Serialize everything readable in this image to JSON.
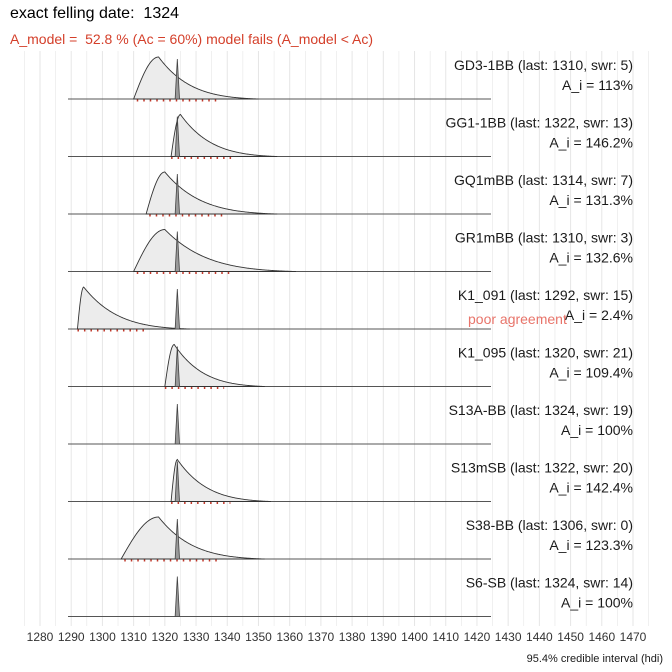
{
  "title": "exact felling date:  1324",
  "subtitle": "A_model =  52.8 % (Ac = 60%) model fails (A_model < Ac)",
  "caption": "95.4% credible interval (hdi)",
  "colors": {
    "subtitle": "#d43f2a",
    "density_fill": "#ececec",
    "density_line": "#333333",
    "felling_fill": "#9a9a9a",
    "hdi_dots": "#c0392b",
    "grid": "#e6e6e6",
    "warning": "#e8746a"
  },
  "chart_data": {
    "type": "area",
    "xlabel": "",
    "ylabel": "",
    "xlim": [
      1275,
      1475
    ],
    "x_ticks": [
      1280,
      1290,
      1300,
      1310,
      1320,
      1330,
      1340,
      1350,
      1360,
      1370,
      1380,
      1390,
      1400,
      1410,
      1420,
      1430,
      1440,
      1450,
      1460,
      1470
    ],
    "felling_date": 1324,
    "grid": true,
    "series": [
      {
        "name": "GD3-1BB",
        "last": 1310,
        "swr": 5,
        "label": "GD3-1BB (last: 1310, swr: 5)",
        "a_i": "A_i = 113%",
        "peak": 1318,
        "start": 1310,
        "end": 1350,
        "hdi": [
          1311,
          1337
        ],
        "warning": ""
      },
      {
        "name": "GG1-1BB",
        "last": 1322,
        "swr": 13,
        "label": "GG1-1BB (last: 1322, swr: 13)",
        "a_i": "A_i = 146.2%",
        "peak": 1325,
        "start": 1322,
        "end": 1356,
        "hdi": [
          1322,
          1342
        ],
        "warning": ""
      },
      {
        "name": "GQ1mBB",
        "last": 1314,
        "swr": 7,
        "label": "GQ1mBB (last: 1314, swr: 7)",
        "a_i": "A_i = 131.3%",
        "peak": 1320,
        "start": 1314,
        "end": 1356,
        "hdi": [
          1315,
          1340
        ],
        "warning": ""
      },
      {
        "name": "GR1mBB",
        "last": 1310,
        "swr": 3,
        "label": "GR1mBB (last: 1310, swr: 3)",
        "a_i": "A_i = 132.6%",
        "peak": 1320,
        "start": 1310,
        "end": 1362,
        "hdi": [
          1311,
          1342
        ],
        "warning": ""
      },
      {
        "name": "K1_091",
        "last": 1292,
        "swr": 15,
        "label": "K1_091 (last: 1292, swr: 15)",
        "a_i": "A_i = 2.4%",
        "peak": 1294,
        "start": 1292,
        "end": 1328,
        "hdi": [
          1292,
          1314
        ],
        "warning": "poor agreement"
      },
      {
        "name": "K1_095",
        "last": 1320,
        "swr": 21,
        "label": "K1_095 (last: 1320, swr: 21)",
        "a_i": "A_i = 109.4%",
        "peak": 1323,
        "start": 1320,
        "end": 1352,
        "hdi": [
          1320,
          1339
        ],
        "warning": ""
      },
      {
        "name": "S13A-BB",
        "last": 1324,
        "swr": 19,
        "label": "S13A-BB (last: 1324, swr: 19)",
        "a_i": "A_i = 100%",
        "peak": null,
        "start": null,
        "end": null,
        "hdi": null,
        "warning": ""
      },
      {
        "name": "S13mSB",
        "last": 1322,
        "swr": 20,
        "label": "S13mSB (last: 1322, swr: 20)",
        "a_i": "A_i = 142.4%",
        "peak": 1324,
        "start": 1322,
        "end": 1354,
        "hdi": [
          1322,
          1341
        ],
        "warning": ""
      },
      {
        "name": "S38-BB",
        "last": 1306,
        "swr": 0,
        "label": "S38-BB (last: 1306, swr: 0)",
        "a_i": "A_i = 123.3%",
        "peak": 1318,
        "start": 1306,
        "end": 1352,
        "hdi": [
          1307,
          1338
        ],
        "warning": ""
      },
      {
        "name": "S6-SB",
        "last": 1324,
        "swr": 14,
        "label": "S6-SB (last: 1324, swr: 14)",
        "a_i": "A_i = 100%",
        "peak": null,
        "start": null,
        "end": null,
        "hdi": null,
        "warning": ""
      }
    ]
  }
}
